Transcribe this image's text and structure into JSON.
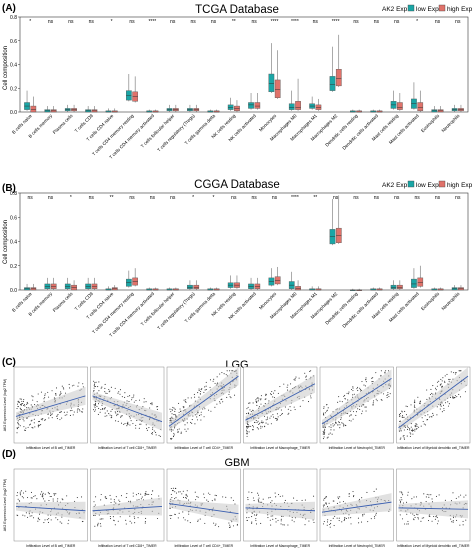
{
  "panel_labels": {
    "a": "(A)",
    "b": "(B)",
    "c": "(C)",
    "d": "(D)"
  },
  "panel_a": {
    "title": "TCGA Database",
    "legend_title": "AK2 Exp",
    "legend_low": "low Exp",
    "legend_high": "high Exp",
    "ylabel": "Cell composition",
    "yticks": [
      "0.0",
      "0.2",
      "0.4",
      "0.6",
      "0.8"
    ]
  },
  "panel_b": {
    "title": "CGGA Database",
    "legend_title": "AK2 Exp",
    "legend_low": "low Exp",
    "legend_high": "high Exp",
    "ylabel": "Cell composition",
    "yticks": [
      "0.0",
      "0.2",
      "0.4",
      "0.6",
      "0.8"
    ]
  },
  "panel_c": {
    "title": "LGG",
    "ylabel": "AK2 Expression Level (log2 TPM)",
    "xlabels": [
      "Infiltration Level of B cell_TIMER",
      "Infiltration Level of T cell CD8+_TIMER",
      "Infiltration Level of T cell CD4+_TIMER",
      "Infiltration Level of Macrophage_TIMER",
      "Infiltration Level of Neutrophil_TIMER",
      "Infiltration Level of Myeloid dendritic cell_TIMER"
    ]
  },
  "panel_d": {
    "title": "GBM",
    "ylabel": "AK2 Expression Level (log2 TPM)",
    "xlabels": [
      "Infiltration Level of B cell_TIMER",
      "Infiltration Level of T cell CD8+_TIMER",
      "Infiltration Level of T cell CD4+_TIMER",
      "Infiltration Level of Macrophage_TIMER",
      "Infiltration Level of Neutrophil_TIMER",
      "Infiltration Level of Myeloid dendritic cell_TIMER"
    ]
  },
  "colors": {
    "low": "#1aa6a6",
    "high": "#e0726a",
    "reg_line": "#3b5fb0",
    "ci_band": "#c8c8c8",
    "points": "#333333",
    "note": "#d03030"
  },
  "chart_data": [
    {
      "type": "box",
      "title": "TCGA Database",
      "ylabel": "Cell composition",
      "ylim": [
        0,
        0.8
      ],
      "categories": [
        "B cells naive",
        "B cells memory",
        "Plasma cells",
        "T cells CD8",
        "T cells CD4 naive",
        "T cells CD4 memory resting",
        "T cells CD4 memory activated",
        "T cells follicular helper",
        "T cells regulatory (Tregs)",
        "T cells gamma delta",
        "NK cells resting",
        "NK cells activated",
        "Monocytes",
        "Macrophages M0",
        "Macrophages M1",
        "Macrophages M2",
        "Dendritic cells resting",
        "Dendritic cells activated",
        "Mast cells resting",
        "Mast cells activated",
        "Eosinophils",
        "Neutrophils"
      ],
      "significance": [
        "*",
        "ns",
        "ns",
        "ns",
        "*",
        "ns",
        "****",
        "ns",
        "ns",
        "ns",
        "**",
        "ns",
        "****",
        "****",
        "ns",
        "****",
        "ns",
        "ns",
        "ns",
        "*",
        "ns",
        "ns"
      ],
      "series": [
        {
          "name": "low Exp",
          "q1": [
            0.02,
            0.0,
            0.01,
            0.0,
            0.0,
            0.1,
            0.0,
            0.01,
            0.01,
            0.0,
            0.02,
            0.03,
            0.17,
            0.02,
            0.03,
            0.18,
            0.0,
            0.0,
            0.03,
            0.03,
            0.0,
            0.01
          ],
          "median": [
            0.05,
            0.01,
            0.02,
            0.01,
            0.0,
            0.14,
            0.0,
            0.02,
            0.02,
            0.0,
            0.04,
            0.06,
            0.24,
            0.04,
            0.05,
            0.23,
            0.0,
            0.0,
            0.06,
            0.07,
            0.01,
            0.02
          ],
          "q3": [
            0.08,
            0.02,
            0.03,
            0.02,
            0.01,
            0.18,
            0.01,
            0.03,
            0.03,
            0.01,
            0.06,
            0.08,
            0.32,
            0.07,
            0.07,
            0.3,
            0.01,
            0.01,
            0.09,
            0.11,
            0.02,
            0.03
          ],
          "whisker_high": [
            0.18,
            0.05,
            0.06,
            0.05,
            0.03,
            0.32,
            0.02,
            0.06,
            0.06,
            0.02,
            0.12,
            0.16,
            0.58,
            0.18,
            0.13,
            0.55,
            0.02,
            0.02,
            0.18,
            0.25,
            0.05,
            0.06
          ]
        },
        {
          "name": "high Exp",
          "q1": [
            0.0,
            0.0,
            0.01,
            0.0,
            0.0,
            0.09,
            0.0,
            0.01,
            0.01,
            0.0,
            0.01,
            0.03,
            0.12,
            0.02,
            0.02,
            0.22,
            0.0,
            0.0,
            0.02,
            0.01,
            0.0,
            0.01
          ],
          "median": [
            0.02,
            0.01,
            0.02,
            0.01,
            0.0,
            0.13,
            0.0,
            0.02,
            0.02,
            0.0,
            0.03,
            0.05,
            0.19,
            0.04,
            0.04,
            0.28,
            0.0,
            0.0,
            0.04,
            0.04,
            0.01,
            0.02
          ],
          "q3": [
            0.05,
            0.02,
            0.03,
            0.02,
            0.01,
            0.17,
            0.01,
            0.03,
            0.03,
            0.01,
            0.05,
            0.08,
            0.27,
            0.09,
            0.06,
            0.36,
            0.01,
            0.01,
            0.08,
            0.08,
            0.02,
            0.03
          ],
          "whisker_high": [
            0.13,
            0.05,
            0.06,
            0.05,
            0.03,
            0.3,
            0.02,
            0.06,
            0.06,
            0.02,
            0.1,
            0.16,
            0.52,
            0.28,
            0.11,
            0.65,
            0.02,
            0.02,
            0.16,
            0.18,
            0.05,
            0.06
          ]
        }
      ]
    },
    {
      "type": "box",
      "title": "CGGA Database",
      "ylabel": "Cell composition",
      "ylim": [
        0,
        0.8
      ],
      "categories": [
        "B cells naive",
        "B cells memory",
        "Plasma cells",
        "T cells CD8",
        "T cells CD4 naive",
        "T cells CD4 memory resting",
        "T cells CD4 memory activated",
        "T cells follicular helper",
        "T cells regulatory (Tregs)",
        "T cells gamma delta",
        "NK cells resting",
        "NK cells activated",
        "Monocytes",
        "Macrophages M0",
        "Macrophages M1",
        "Macrophages M2",
        "Dendritic cells resting",
        "Dendritic cells activated",
        "Mast cells resting",
        "Mast cells activated",
        "Eosinophils",
        "Neutrophils"
      ],
      "significance": [
        "ns",
        "ns",
        "*",
        "ns",
        "**",
        "ns",
        "ns",
        "ns",
        "*",
        "*",
        "ns",
        "ns",
        "ns",
        "****",
        "**",
        "ns",
        "ns",
        "ns",
        "ns",
        "ns",
        "ns",
        "ns"
      ],
      "series": [
        {
          "name": "low Exp",
          "q1": [
            0.0,
            0.01,
            0.01,
            0.01,
            0.0,
            0.03,
            0.0,
            0.0,
            0.01,
            0.0,
            0.02,
            0.01,
            0.04,
            0.01,
            0.0,
            0.38,
            0.0,
            0.0,
            0.01,
            0.02,
            0.0,
            0.0
          ],
          "median": [
            0.01,
            0.03,
            0.03,
            0.03,
            0.0,
            0.06,
            0.0,
            0.0,
            0.02,
            0.0,
            0.04,
            0.03,
            0.07,
            0.04,
            0.0,
            0.44,
            0.0,
            0.0,
            0.02,
            0.05,
            0.0,
            0.01
          ],
          "q3": [
            0.02,
            0.05,
            0.05,
            0.05,
            0.01,
            0.09,
            0.01,
            0.01,
            0.04,
            0.01,
            0.06,
            0.05,
            0.1,
            0.07,
            0.01,
            0.5,
            0.0,
            0.01,
            0.04,
            0.09,
            0.01,
            0.02
          ],
          "whisker_high": [
            0.05,
            0.1,
            0.1,
            0.1,
            0.03,
            0.16,
            0.02,
            0.02,
            0.08,
            0.02,
            0.12,
            0.1,
            0.18,
            0.15,
            0.03,
            0.75,
            0.01,
            0.02,
            0.08,
            0.18,
            0.02,
            0.04
          ]
        },
        {
          "name": "high Exp",
          "q1": [
            0.0,
            0.01,
            0.0,
            0.01,
            0.0,
            0.04,
            0.0,
            0.0,
            0.01,
            0.0,
            0.02,
            0.01,
            0.05,
            0.0,
            0.0,
            0.39,
            0.0,
            0.0,
            0.01,
            0.03,
            0.0,
            0.0
          ],
          "median": [
            0.01,
            0.03,
            0.02,
            0.03,
            0.01,
            0.07,
            0.0,
            0.0,
            0.02,
            0.0,
            0.04,
            0.03,
            0.08,
            0.01,
            0.0,
            0.45,
            0.0,
            0.0,
            0.02,
            0.06,
            0.0,
            0.01
          ],
          "q3": [
            0.02,
            0.05,
            0.04,
            0.05,
            0.02,
            0.1,
            0.01,
            0.01,
            0.04,
            0.01,
            0.06,
            0.05,
            0.11,
            0.03,
            0.01,
            0.51,
            0.0,
            0.01,
            0.04,
            0.1,
            0.01,
            0.02
          ],
          "whisker_high": [
            0.05,
            0.1,
            0.08,
            0.1,
            0.04,
            0.18,
            0.02,
            0.02,
            0.08,
            0.02,
            0.12,
            0.1,
            0.19,
            0.08,
            0.03,
            0.78,
            0.01,
            0.02,
            0.08,
            0.2,
            0.02,
            0.04
          ]
        }
      ]
    },
    {
      "type": "scatter",
      "title": "LGG",
      "ylabel": "AK2 Expression Level (log2 TPM)",
      "subplots": [
        {
          "xlabel": "Infiltration Level of B cell_TIMER",
          "trend": [
            0.35,
            0.62
          ]
        },
        {
          "xlabel": "Infiltration Level of T cell CD8+_TIMER",
          "trend": [
            0.62,
            0.28
          ]
        },
        {
          "xlabel": "Infiltration Level of T cell CD4+_TIMER",
          "trend": [
            0.22,
            0.88
          ]
        },
        {
          "xlabel": "Infiltration Level of Macrophage_TIMER",
          "trend": [
            0.3,
            0.78
          ]
        },
        {
          "xlabel": "Infiltration Level of Neutrophil_TIMER",
          "trend": [
            0.25,
            0.85
          ]
        },
        {
          "xlabel": "Infiltration Level of Myeloid dendritic cell_TIMER",
          "trend": [
            0.2,
            0.88
          ]
        }
      ]
    },
    {
      "type": "scatter",
      "title": "GBM",
      "ylabel": "AK2 Expression Level (log2 TPM)",
      "subplots": [
        {
          "xlabel": "Infiltration Level of B cell_TIMER",
          "trend": [
            0.48,
            0.42
          ]
        },
        {
          "xlabel": "Infiltration Level of T cell CD8+_TIMER",
          "trend": [
            0.42,
            0.48
          ]
        },
        {
          "xlabel": "Infiltration Level of T cell CD4+_TIMER",
          "trend": [
            0.52,
            0.38
          ]
        },
        {
          "xlabel": "Infiltration Level of Macrophage_TIMER",
          "trend": [
            0.46,
            0.42
          ]
        },
        {
          "xlabel": "Infiltration Level of Neutrophil_TIMER",
          "trend": [
            0.4,
            0.54
          ]
        },
        {
          "xlabel": "Infiltration Level of Myeloid dendritic cell_TIMER",
          "trend": [
            0.46,
            0.44
          ]
        }
      ]
    }
  ]
}
